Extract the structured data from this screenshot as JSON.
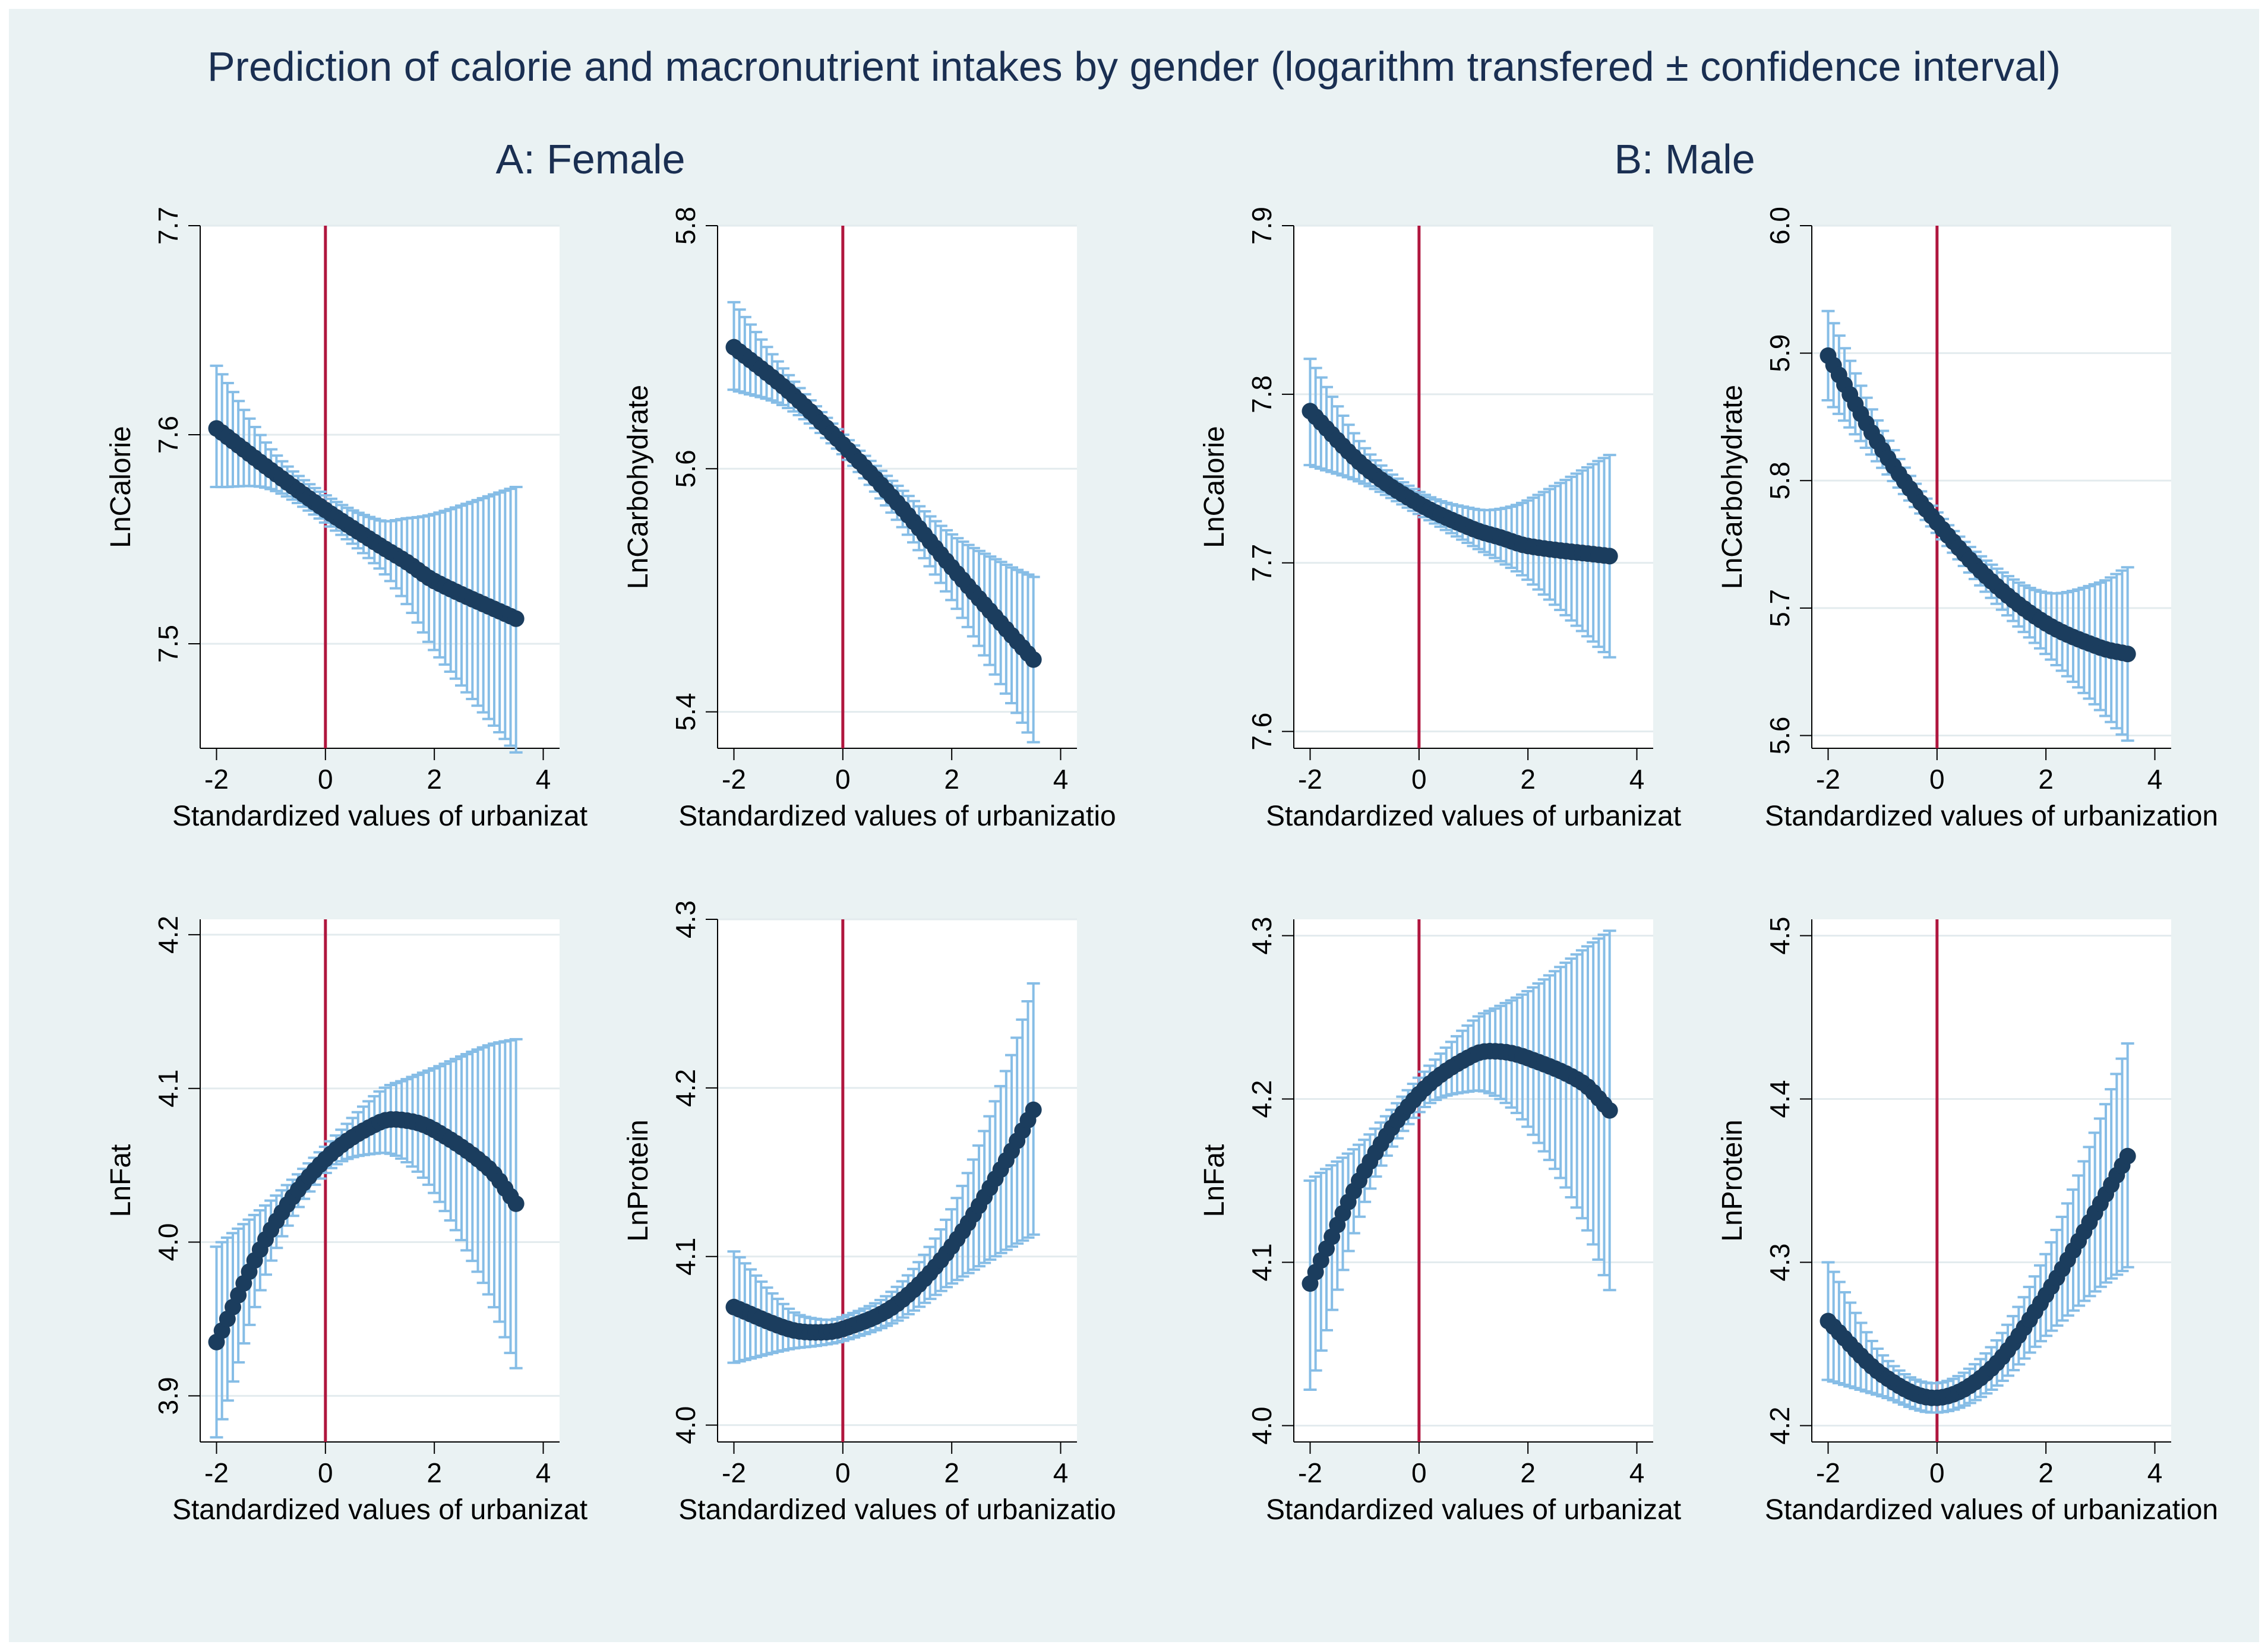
{
  "title": "Prediction of calorie and macronutrient intakes by gender (logarithm transfered ± confidence interval)",
  "group_titles": [
    "A: Female",
    "B: Male"
  ],
  "colors": {
    "background": "#eaf2f3",
    "plot_bg": "#ffffff",
    "grid": "#e3ebee",
    "ci": "#86bde6",
    "fit": "#1b3d5e",
    "ref_line": "#b0163e",
    "title": "#1a2f52"
  },
  "chart_data": [
    {
      "id": "female-calorie",
      "type": "line",
      "group": "A: Female",
      "ylabel": "LnCalorie",
      "xlabel": "Standardized values of urbanizat",
      "xlim": [
        -2.3,
        4.3
      ],
      "ylim": [
        7.45,
        7.7
      ],
      "yticks": [
        7.5,
        7.6,
        7.7
      ],
      "xticks": [
        -2,
        0,
        2,
        4
      ],
      "xline": 0,
      "points": [
        [
          -2.0,
          7.603,
          7.575,
          7.633
        ],
        [
          -1.0,
          7.583,
          7.574,
          7.593
        ],
        [
          0.0,
          7.564,
          7.558,
          7.571
        ],
        [
          1.0,
          7.547,
          7.536,
          7.559
        ],
        [
          1.5,
          7.539,
          7.519,
          7.56
        ],
        [
          2.0,
          7.53,
          7.497,
          7.562
        ],
        [
          3.5,
          7.512,
          7.448,
          7.575
        ]
      ]
    },
    {
      "id": "female-carbohydrate",
      "type": "line",
      "group": "A: Female",
      "ylabel": "LnCarbohydrate",
      "xlabel": "Standardized values of urbanizatio",
      "xlim": [
        -2.3,
        4.3
      ],
      "ylim": [
        5.37,
        5.8
      ],
      "yticks": [
        5.4,
        5.6,
        5.8
      ],
      "xticks": [
        -2,
        0,
        2,
        4
      ],
      "xline": 0,
      "points": [
        [
          -2.0,
          5.7,
          5.665,
          5.737
        ],
        [
          -1.0,
          5.664,
          5.65,
          5.677
        ],
        [
          0.0,
          5.62,
          5.612,
          5.628
        ],
        [
          1.0,
          5.572,
          5.558,
          5.586
        ],
        [
          2.0,
          5.519,
          5.492,
          5.546
        ],
        [
          3.0,
          5.468,
          5.415,
          5.521
        ],
        [
          3.5,
          5.443,
          5.375,
          5.511
        ]
      ]
    },
    {
      "id": "male-calorie",
      "type": "line",
      "group": "B: Male",
      "ylabel": "LnCalorie",
      "xlabel": "Standardized values of urbanizat",
      "xlim": [
        -2.3,
        4.3
      ],
      "ylim": [
        7.59,
        7.9
      ],
      "yticks": [
        7.6,
        7.7,
        7.8,
        7.9
      ],
      "xticks": [
        -2,
        0,
        2,
        4
      ],
      "xline": 0,
      "points": [
        [
          -2.0,
          7.79,
          7.758,
          7.821
        ],
        [
          -1.0,
          7.757,
          7.747,
          7.768
        ],
        [
          0.0,
          7.735,
          7.729,
          7.742
        ],
        [
          1.0,
          7.72,
          7.71,
          7.732
        ],
        [
          1.5,
          7.715,
          7.701,
          7.732
        ],
        [
          2.0,
          7.71,
          7.69,
          7.737
        ],
        [
          3.5,
          7.704,
          7.644,
          7.764
        ]
      ]
    },
    {
      "id": "male-carbohydrate",
      "type": "line",
      "group": "B: Male",
      "ylabel": "LnCarbohydrate",
      "xlabel": "Standardized values of urbanization",
      "xlim": [
        -2.3,
        4.3
      ],
      "ylim": [
        5.59,
        6.0
      ],
      "yticks": [
        5.6,
        5.7,
        5.8,
        5.9,
        6.0
      ],
      "xticks": [
        -2,
        0,
        2,
        4
      ],
      "xline": 0,
      "points": [
        [
          -2.0,
          5.898,
          5.863,
          5.933
        ],
        [
          -1.0,
          5.824,
          5.81,
          5.839
        ],
        [
          0.0,
          5.767,
          5.759,
          5.775
        ],
        [
          1.0,
          5.721,
          5.708,
          5.734
        ],
        [
          2.0,
          5.688,
          5.664,
          5.712
        ],
        [
          3.0,
          5.669,
          5.62,
          5.72
        ],
        [
          3.5,
          5.664,
          5.596,
          5.732
        ]
      ]
    },
    {
      "id": "female-fat",
      "type": "line",
      "group": "A: Female",
      "ylabel": "LnFat",
      "xlabel": "Standardized values of urbanizat",
      "xlim": [
        -2.3,
        4.3
      ],
      "ylim": [
        3.87,
        4.21
      ],
      "yticks": [
        3.9,
        4.0,
        4.1,
        4.2
      ],
      "xticks": [
        -2,
        0,
        2,
        4
      ],
      "xline": 0,
      "points": [
        [
          -2.0,
          3.935,
          3.873,
          3.997
        ],
        [
          -1.0,
          4.008,
          3.988,
          4.027
        ],
        [
          0.0,
          4.054,
          4.045,
          4.062
        ],
        [
          1.0,
          4.078,
          4.058,
          4.098
        ],
        [
          1.5,
          4.079,
          4.052,
          4.106
        ],
        [
          2.0,
          4.073,
          4.032,
          4.113
        ],
        [
          3.0,
          4.048,
          3.966,
          4.128
        ],
        [
          3.5,
          4.025,
          3.918,
          4.132
        ]
      ]
    },
    {
      "id": "female-protein",
      "type": "line",
      "group": "A: Female",
      "ylabel": "LnProtein",
      "xlabel": "Standardized values of urbanizatio",
      "xlim": [
        -2.3,
        4.3
      ],
      "ylim": [
        3.99,
        4.3
      ],
      "yticks": [
        4.0,
        4.1,
        4.2,
        4.3
      ],
      "xticks": [
        -2,
        0,
        2,
        4
      ],
      "xline": 0,
      "points": [
        [
          -2.0,
          4.07,
          4.037,
          4.103
        ],
        [
          -1.0,
          4.057,
          4.045,
          4.069
        ],
        [
          -0.5,
          4.055,
          4.047,
          4.063
        ],
        [
          0.0,
          4.057,
          4.05,
          4.064
        ],
        [
          1.0,
          4.072,
          4.062,
          4.082
        ],
        [
          2.0,
          4.106,
          4.084,
          4.128
        ],
        [
          3.0,
          4.157,
          4.104,
          4.21
        ],
        [
          3.5,
          4.187,
          4.113,
          4.262
        ]
      ]
    },
    {
      "id": "male-fat",
      "type": "line",
      "group": "B: Male",
      "ylabel": "LnFat",
      "xlabel": "Standardized values of urbanizat",
      "xlim": [
        -2.3,
        4.3
      ],
      "ylim": [
        3.99,
        4.31
      ],
      "yticks": [
        4.0,
        4.1,
        4.2,
        4.3
      ],
      "xticks": [
        -2,
        0,
        2,
        4
      ],
      "xline": 0,
      "points": [
        [
          -2.0,
          4.087,
          4.022,
          4.15
        ],
        [
          -1.0,
          4.156,
          4.137,
          4.175
        ],
        [
          0.0,
          4.203,
          4.192,
          4.213
        ],
        [
          1.0,
          4.227,
          4.205,
          4.248
        ],
        [
          1.5,
          4.229,
          4.2,
          4.257
        ],
        [
          2.0,
          4.225,
          4.183,
          4.266
        ],
        [
          3.0,
          4.21,
          4.127,
          4.291
        ],
        [
          3.5,
          4.193,
          4.083,
          4.303
        ]
      ]
    },
    {
      "id": "male-protein",
      "type": "line",
      "group": "B: Male",
      "ylabel": "LnProtein",
      "xlabel": "Standardized values of urbanization",
      "xlim": [
        -2.3,
        4.3
      ],
      "ylim": [
        4.19,
        4.51
      ],
      "yticks": [
        4.2,
        4.3,
        4.4,
        4.5
      ],
      "xticks": [
        -2,
        0,
        2,
        4
      ],
      "xline": 0,
      "points": [
        [
          -2.0,
          4.264,
          4.228,
          4.3
        ],
        [
          -1.0,
          4.231,
          4.218,
          4.243
        ],
        [
          0.0,
          4.217,
          4.208,
          4.226
        ],
        [
          1.0,
          4.235,
          4.222,
          4.248
        ],
        [
          2.0,
          4.28,
          4.255,
          4.305
        ],
        [
          3.0,
          4.336,
          4.285,
          4.388
        ],
        [
          3.5,
          4.365,
          4.297,
          4.434
        ]
      ]
    }
  ]
}
